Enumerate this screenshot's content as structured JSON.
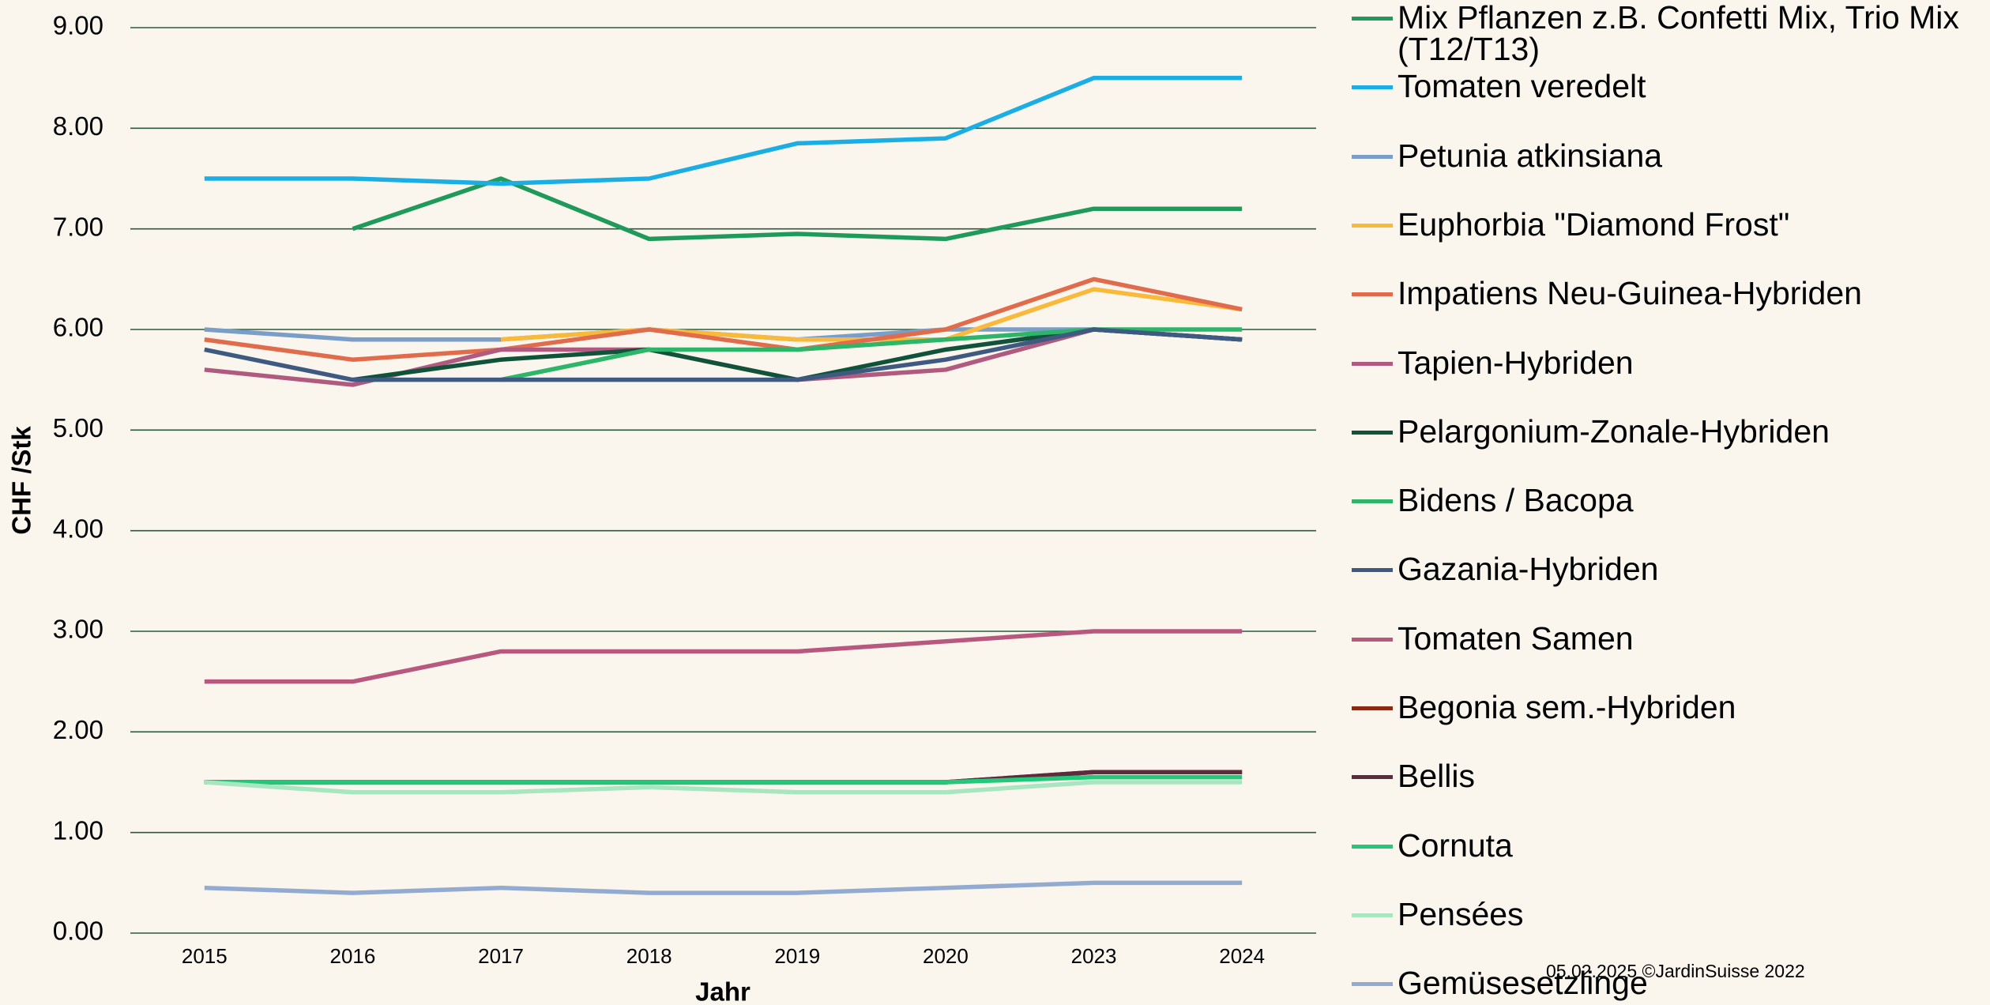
{
  "chart_data": {
    "type": "line",
    "y_label": "CHF /Stk",
    "x_label": "Jahr",
    "annotation": "05.02.2025 ©JardinSuisse 2022",
    "categories": [
      "2015",
      "2016",
      "2017",
      "2018",
      "2019",
      "2020",
      "2023",
      "2024"
    ],
    "ylim": [
      0,
      9
    ],
    "yticks": [
      {
        "value": 0,
        "label": "0.00"
      },
      {
        "value": 1,
        "label": "1.00"
      },
      {
        "value": 2,
        "label": "2.00"
      },
      {
        "value": 3,
        "label": "3.00"
      },
      {
        "value": 4,
        "label": "4.00"
      },
      {
        "value": 5,
        "label": "5.00"
      },
      {
        "value": 6,
        "label": "6.00"
      },
      {
        "value": 7,
        "label": "7.00"
      },
      {
        "value": 8,
        "label": "8.00"
      },
      {
        "value": 9,
        "label": "9.00"
      }
    ],
    "grid": true,
    "series": [
      {
        "name": "Mix Pflanzen z.B. Confetti Mix, Trio Mix (T12/T13)",
        "color": "#1f9a5a",
        "values": [
          null,
          7.0,
          7.5,
          6.9,
          6.95,
          6.9,
          7.2,
          7.2
        ]
      },
      {
        "name": "Tomaten veredelt",
        "color": "#1aaee5",
        "values": [
          7.5,
          7.5,
          7.45,
          7.5,
          7.85,
          7.9,
          8.5,
          8.5
        ]
      },
      {
        "name": "Petunia atkinsiana",
        "color": "#7a9ec8",
        "values": [
          6.0,
          5.9,
          5.9,
          6.0,
          5.9,
          6.0,
          6.0,
          5.9
        ]
      },
      {
        "name": "Euphorbia \"Diamond Frost\"",
        "color": "#f9b93a",
        "values": [
          null,
          null,
          5.9,
          6.0,
          5.9,
          5.9,
          6.4,
          6.2
        ]
      },
      {
        "name": "Impatiens Neu-Guinea-Hybriden",
        "color": "#e06c4c",
        "values": [
          5.9,
          5.7,
          5.8,
          6.0,
          5.8,
          6.0,
          6.5,
          6.2
        ]
      },
      {
        "name": "Tapien-Hybriden",
        "color": "#b05a80",
        "values": [
          5.6,
          5.45,
          5.8,
          5.8,
          5.5,
          5.6,
          6.0,
          5.9
        ]
      },
      {
        "name": "Pelargonium-Zonale-Hybriden",
        "color": "#11533a",
        "values": [
          null,
          5.5,
          5.7,
          5.8,
          5.5,
          5.8,
          6.0,
          5.9
        ]
      },
      {
        "name": "Bidens / Bacopa",
        "color": "#2db56a",
        "values": [
          null,
          null,
          5.5,
          5.8,
          5.8,
          5.9,
          6.0,
          6.0
        ]
      },
      {
        "name": "Gazania-Hybriden",
        "color": "#3e5a80",
        "values": [
          5.8,
          5.5,
          5.5,
          5.5,
          5.5,
          5.7,
          6.0,
          5.9
        ]
      },
      {
        "name": "Tomaten Samen",
        "color": "#b8587e",
        "values": [
          2.5,
          2.5,
          2.8,
          2.8,
          2.8,
          2.9,
          3.0,
          3.0
        ]
      },
      {
        "name": "Begonia sem.-Hybriden",
        "color": "#8b2a10",
        "values": [
          1.5,
          1.5,
          1.5,
          1.5,
          1.5,
          1.5,
          1.6,
          1.6
        ]
      },
      {
        "name": "Bellis",
        "color": "#5e2a3e",
        "values": [
          1.5,
          1.5,
          1.5,
          1.5,
          1.5,
          1.5,
          1.6,
          1.6
        ]
      },
      {
        "name": "Cornuta",
        "color": "#22c97a",
        "values": [
          1.5,
          1.5,
          1.5,
          1.5,
          1.5,
          1.5,
          1.55,
          1.55
        ]
      },
      {
        "name": "Pensées",
        "color": "#a8e6c0",
        "values": [
          1.5,
          1.4,
          1.4,
          1.45,
          1.4,
          1.4,
          1.5,
          1.5
        ]
      },
      {
        "name": "Gemüsesetzlinge",
        "color": "#93abd0",
        "values": [
          0.45,
          0.4,
          0.45,
          0.4,
          0.4,
          0.45,
          0.5,
          0.5
        ]
      }
    ]
  }
}
